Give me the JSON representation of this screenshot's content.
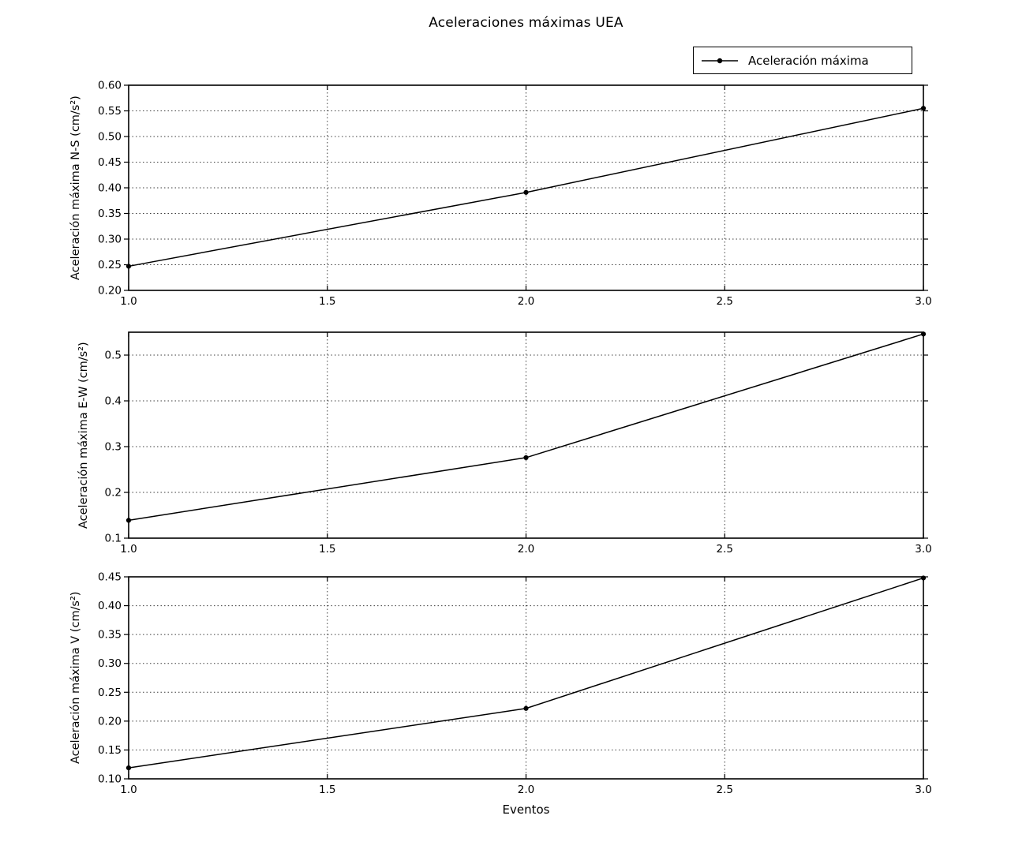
{
  "title": "Aceleraciones máximas UEA",
  "xlabel": "Eventos",
  "legend": {
    "label": "Aceleración máxima"
  },
  "colors": {
    "line": "#000000",
    "marker": "#000000",
    "grid": "#3c3c3c",
    "spine": "#000000",
    "text": "#000000",
    "background": "#ffffff"
  },
  "chart_data": {
    "type": "line",
    "title": "Aceleraciones máximas UEA",
    "xlabel": "Eventos",
    "legend_entries": [
      "Aceleración máxima"
    ],
    "legend_position": "top-right above axes",
    "grid": "dotted",
    "marker": "point",
    "x": [
      1.0,
      2.0,
      3.0
    ],
    "xlim": [
      1.0,
      3.0
    ],
    "xticks": [
      1.0,
      1.5,
      2.0,
      2.5,
      3.0
    ],
    "xtick_labels": [
      "1.0",
      "1.5",
      "2.0",
      "2.5",
      "3.0"
    ],
    "subplots": [
      {
        "ylabel": "Aceleración máxima N-S (cm/s²)",
        "series": "Aceleración máxima",
        "values": [
          0.247,
          0.391,
          0.555
        ],
        "ylim": [
          0.2,
          0.6
        ],
        "yticks": [
          0.2,
          0.25,
          0.3,
          0.35,
          0.4,
          0.45,
          0.5,
          0.55,
          0.6
        ],
        "ytick_labels": [
          "0.20",
          "0.25",
          "0.30",
          "0.35",
          "0.40",
          "0.45",
          "0.50",
          "0.55",
          "0.60"
        ]
      },
      {
        "ylabel": "Aceleración máxima E-W (cm/s²)",
        "series": "Aceleración máxima",
        "values": [
          0.139,
          0.276,
          0.546
        ],
        "ylim": [
          0.1,
          0.55
        ],
        "yticks": [
          0.1,
          0.2,
          0.3,
          0.4,
          0.5
        ],
        "ytick_labels": [
          "0.1",
          "0.2",
          "0.3",
          "0.4",
          "0.5"
        ]
      },
      {
        "ylabel": "Aceleración máxima V (cm/s²)",
        "series": "Aceleración máxima",
        "values": [
          0.119,
          0.222,
          0.448
        ],
        "ylim": [
          0.1,
          0.45
        ],
        "yticks": [
          0.1,
          0.15,
          0.2,
          0.25,
          0.3,
          0.35,
          0.4,
          0.45
        ],
        "ytick_labels": [
          "0.10",
          "0.15",
          "0.20",
          "0.25",
          "0.30",
          "0.35",
          "0.40",
          "0.45"
        ]
      }
    ]
  }
}
